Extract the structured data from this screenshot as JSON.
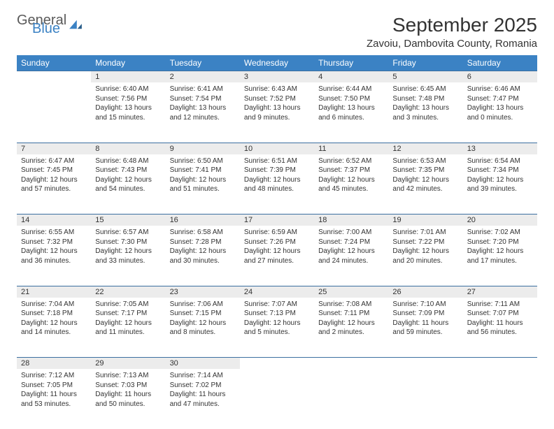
{
  "brand": {
    "part1": "General",
    "part2": "Blue",
    "color1": "#5a5a5a",
    "color2": "#3b82c4"
  },
  "title": "September 2025",
  "location": "Zavoiu, Dambovita County, Romania",
  "colors": {
    "header_bg": "#3b82c4",
    "header_text": "#ffffff",
    "daynum_bg": "#ececec",
    "row_border": "#3b6fa0",
    "text": "#333333",
    "background": "#ffffff"
  },
  "weekdays": [
    "Sunday",
    "Monday",
    "Tuesday",
    "Wednesday",
    "Thursday",
    "Friday",
    "Saturday"
  ],
  "weeks": [
    [
      null,
      {
        "n": "1",
        "sr": "6:40 AM",
        "ss": "7:56 PM",
        "dl": "13 hours and 15 minutes."
      },
      {
        "n": "2",
        "sr": "6:41 AM",
        "ss": "7:54 PM",
        "dl": "13 hours and 12 minutes."
      },
      {
        "n": "3",
        "sr": "6:43 AM",
        "ss": "7:52 PM",
        "dl": "13 hours and 9 minutes."
      },
      {
        "n": "4",
        "sr": "6:44 AM",
        "ss": "7:50 PM",
        "dl": "13 hours and 6 minutes."
      },
      {
        "n": "5",
        "sr": "6:45 AM",
        "ss": "7:48 PM",
        "dl": "13 hours and 3 minutes."
      },
      {
        "n": "6",
        "sr": "6:46 AM",
        "ss": "7:47 PM",
        "dl": "13 hours and 0 minutes."
      }
    ],
    [
      {
        "n": "7",
        "sr": "6:47 AM",
        "ss": "7:45 PM",
        "dl": "12 hours and 57 minutes."
      },
      {
        "n": "8",
        "sr": "6:48 AM",
        "ss": "7:43 PM",
        "dl": "12 hours and 54 minutes."
      },
      {
        "n": "9",
        "sr": "6:50 AM",
        "ss": "7:41 PM",
        "dl": "12 hours and 51 minutes."
      },
      {
        "n": "10",
        "sr": "6:51 AM",
        "ss": "7:39 PM",
        "dl": "12 hours and 48 minutes."
      },
      {
        "n": "11",
        "sr": "6:52 AM",
        "ss": "7:37 PM",
        "dl": "12 hours and 45 minutes."
      },
      {
        "n": "12",
        "sr": "6:53 AM",
        "ss": "7:35 PM",
        "dl": "12 hours and 42 minutes."
      },
      {
        "n": "13",
        "sr": "6:54 AM",
        "ss": "7:34 PM",
        "dl": "12 hours and 39 minutes."
      }
    ],
    [
      {
        "n": "14",
        "sr": "6:55 AM",
        "ss": "7:32 PM",
        "dl": "12 hours and 36 minutes."
      },
      {
        "n": "15",
        "sr": "6:57 AM",
        "ss": "7:30 PM",
        "dl": "12 hours and 33 minutes."
      },
      {
        "n": "16",
        "sr": "6:58 AM",
        "ss": "7:28 PM",
        "dl": "12 hours and 30 minutes."
      },
      {
        "n": "17",
        "sr": "6:59 AM",
        "ss": "7:26 PM",
        "dl": "12 hours and 27 minutes."
      },
      {
        "n": "18",
        "sr": "7:00 AM",
        "ss": "7:24 PM",
        "dl": "12 hours and 24 minutes."
      },
      {
        "n": "19",
        "sr": "7:01 AM",
        "ss": "7:22 PM",
        "dl": "12 hours and 20 minutes."
      },
      {
        "n": "20",
        "sr": "7:02 AM",
        "ss": "7:20 PM",
        "dl": "12 hours and 17 minutes."
      }
    ],
    [
      {
        "n": "21",
        "sr": "7:04 AM",
        "ss": "7:18 PM",
        "dl": "12 hours and 14 minutes."
      },
      {
        "n": "22",
        "sr": "7:05 AM",
        "ss": "7:17 PM",
        "dl": "12 hours and 11 minutes."
      },
      {
        "n": "23",
        "sr": "7:06 AM",
        "ss": "7:15 PM",
        "dl": "12 hours and 8 minutes."
      },
      {
        "n": "24",
        "sr": "7:07 AM",
        "ss": "7:13 PM",
        "dl": "12 hours and 5 minutes."
      },
      {
        "n": "25",
        "sr": "7:08 AM",
        "ss": "7:11 PM",
        "dl": "12 hours and 2 minutes."
      },
      {
        "n": "26",
        "sr": "7:10 AM",
        "ss": "7:09 PM",
        "dl": "11 hours and 59 minutes."
      },
      {
        "n": "27",
        "sr": "7:11 AM",
        "ss": "7:07 PM",
        "dl": "11 hours and 56 minutes."
      }
    ],
    [
      {
        "n": "28",
        "sr": "7:12 AM",
        "ss": "7:05 PM",
        "dl": "11 hours and 53 minutes."
      },
      {
        "n": "29",
        "sr": "7:13 AM",
        "ss": "7:03 PM",
        "dl": "11 hours and 50 minutes."
      },
      {
        "n": "30",
        "sr": "7:14 AM",
        "ss": "7:02 PM",
        "dl": "11 hours and 47 minutes."
      },
      null,
      null,
      null,
      null
    ]
  ],
  "labels": {
    "sunrise": "Sunrise:",
    "sunset": "Sunset:",
    "daylight": "Daylight:"
  }
}
